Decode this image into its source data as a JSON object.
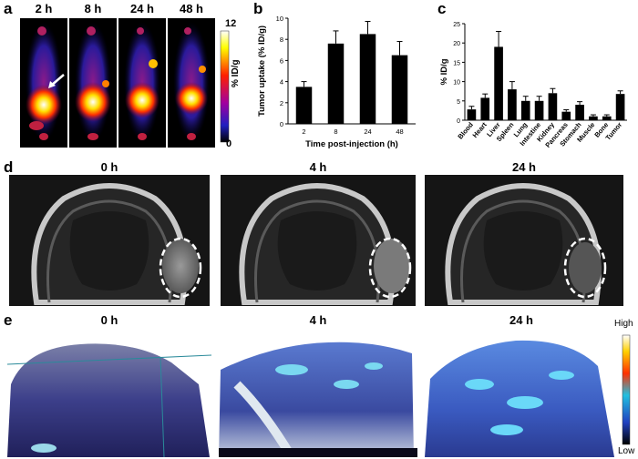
{
  "panel_a": {
    "label": "a",
    "timepoints": [
      "2 h",
      "8 h",
      "24 h",
      "48 h"
    ],
    "colorbar": {
      "max": "12",
      "min": "0",
      "unit": "% ID/g"
    }
  },
  "panel_d": {
    "label": "d",
    "timepoints": [
      "0 h",
      "4 h",
      "24 h"
    ]
  },
  "panel_e": {
    "label": "e",
    "timepoints": [
      "0 h",
      "4 h",
      "24 h"
    ],
    "colorbar": {
      "high": "High",
      "low": "Low"
    }
  },
  "chart_data": [
    {
      "panel": "b",
      "type": "bar",
      "categories": [
        "2",
        "8",
        "24",
        "48"
      ],
      "values": [
        3.5,
        7.6,
        8.5,
        6.5
      ],
      "errors": [
        0.5,
        1.2,
        1.2,
        1.3
      ],
      "xlabel": "Time post-injection (h)",
      "ylabel": "Tumor uptake (% ID/g)",
      "ylim": [
        0,
        10
      ],
      "yticks": [
        "0",
        "2",
        "4",
        "6",
        "8",
        "10"
      ]
    },
    {
      "panel": "c",
      "type": "bar",
      "categories": [
        "Blood",
        "Heart",
        "Liver",
        "Spleen",
        "Lung",
        "Intestine",
        "Kidney",
        "Pancreas",
        "Stomach",
        "Muscle",
        "Bone",
        "Tumor"
      ],
      "values": [
        2.8,
        5.8,
        19.0,
        8.0,
        5.0,
        5.0,
        7.0,
        2.2,
        4.0,
        1.0,
        1.0,
        6.8
      ],
      "errors": [
        0.8,
        1.0,
        4.0,
        2.0,
        1.2,
        1.2,
        1.2,
        0.5,
        0.8,
        0.4,
        0.4,
        0.8
      ],
      "xlabel": "",
      "ylabel": "% ID/g",
      "ylim": [
        0,
        25
      ],
      "yticks": [
        "0",
        "5",
        "10",
        "15",
        "20",
        "25"
      ]
    }
  ]
}
